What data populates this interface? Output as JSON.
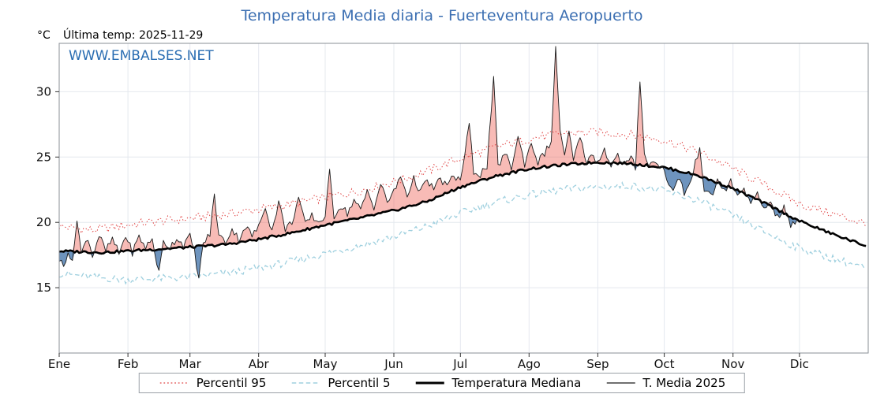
{
  "header": {
    "unit_label": "°C",
    "last_temp_label": "Última temp: 2025-11-29",
    "watermark": "WWW.EMBALSES.NET"
  },
  "chart_data": {
    "type": "line",
    "title": "Temperatura Media diaria - Fuerteventura Aeropuerto",
    "xlabel": "",
    "ylabel": "°C",
    "x_tick_labels": [
      "Ene",
      "Feb",
      "Mar",
      "Abr",
      "May",
      "Jun",
      "Jul",
      "Ago",
      "Sep",
      "Oct",
      "Nov",
      "Dic"
    ],
    "month_start_days": [
      0,
      31,
      59,
      90,
      120,
      151,
      181,
      212,
      243,
      273,
      304,
      334
    ],
    "days_in_year": 365,
    "yticks": [
      15,
      20,
      25,
      30
    ],
    "ylim": [
      10,
      33.7
    ],
    "grid": true,
    "legend_position": "bottom",
    "colors": {
      "title": "#3c6fb2",
      "watermark": "#2a6db2",
      "p95": "#e04343",
      "p5": "#9fd0df",
      "median": "#000000",
      "t2025": "#1a1a1a",
      "fill_above": "rgba(238,92,82,0.42)",
      "fill_below": "rgba(62,112,168,0.75)",
      "grid": "#e4e8ee",
      "frame": "#8a8f96",
      "tick_text": "#111111"
    },
    "legend": [
      {
        "label": "Percentil 95",
        "key": "p95"
      },
      {
        "label": "Percentil 5",
        "key": "p5"
      },
      {
        "label": "Temperatura Mediana",
        "key": "median"
      },
      {
        "label": "T. Media 2025",
        "key": "t2025"
      }
    ],
    "series": {
      "percentil95": {
        "name": "Percentil 95",
        "noise": 0.35,
        "points": [
          [
            0,
            19.7
          ],
          [
            15,
            19.4
          ],
          [
            31,
            19.8
          ],
          [
            45,
            20.1
          ],
          [
            59,
            20.3
          ],
          [
            75,
            20.6
          ],
          [
            90,
            21.0
          ],
          [
            105,
            21.4
          ],
          [
            120,
            21.9
          ],
          [
            135,
            22.4
          ],
          [
            151,
            23.1
          ],
          [
            166,
            23.9
          ],
          [
            181,
            24.9
          ],
          [
            196,
            25.7
          ],
          [
            212,
            26.4
          ],
          [
            227,
            26.8
          ],
          [
            243,
            26.9
          ],
          [
            258,
            26.7
          ],
          [
            273,
            26.3
          ],
          [
            288,
            25.4
          ],
          [
            304,
            24.1
          ],
          [
            319,
            22.8
          ],
          [
            334,
            21.4
          ],
          [
            350,
            20.6
          ],
          [
            364,
            19.9
          ]
        ]
      },
      "percentil5": {
        "name": "Percentil 5",
        "noise": 0.3,
        "points": [
          [
            0,
            16.1
          ],
          [
            15,
            15.8
          ],
          [
            31,
            15.6
          ],
          [
            45,
            15.7
          ],
          [
            59,
            15.8
          ],
          [
            75,
            16.1
          ],
          [
            90,
            16.5
          ],
          [
            105,
            17.0
          ],
          [
            120,
            17.6
          ],
          [
            135,
            18.2
          ],
          [
            151,
            18.9
          ],
          [
            166,
            19.7
          ],
          [
            181,
            20.7
          ],
          [
            196,
            21.5
          ],
          [
            212,
            22.1
          ],
          [
            227,
            22.5
          ],
          [
            243,
            22.7
          ],
          [
            258,
            22.8
          ],
          [
            273,
            22.4
          ],
          [
            288,
            21.7
          ],
          [
            304,
            20.5
          ],
          [
            319,
            19.2
          ],
          [
            334,
            18.0
          ],
          [
            350,
            17.2
          ],
          [
            364,
            16.5
          ]
        ]
      },
      "mediana": {
        "name": "Temperatura Mediana",
        "noise": 0.1,
        "points": [
          [
            0,
            17.8
          ],
          [
            20,
            17.7
          ],
          [
            40,
            17.9
          ],
          [
            59,
            18.1
          ],
          [
            75,
            18.3
          ],
          [
            90,
            18.7
          ],
          [
            105,
            19.2
          ],
          [
            120,
            19.8
          ],
          [
            135,
            20.3
          ],
          [
            151,
            20.9
          ],
          [
            166,
            21.6
          ],
          [
            181,
            22.7
          ],
          [
            196,
            23.5
          ],
          [
            212,
            24.1
          ],
          [
            227,
            24.4
          ],
          [
            243,
            24.6
          ],
          [
            258,
            24.5
          ],
          [
            273,
            24.2
          ],
          [
            288,
            23.6
          ],
          [
            304,
            22.6
          ],
          [
            319,
            21.4
          ],
          [
            334,
            20.1
          ],
          [
            349,
            19.1
          ],
          [
            364,
            18.2
          ]
        ]
      },
      "t_media_2025": {
        "name": "T. Media 2025",
        "noise": 0.3,
        "end_day": 333,
        "points": [
          [
            0,
            17.2
          ],
          [
            2,
            16.6
          ],
          [
            4,
            17.9
          ],
          [
            6,
            16.8
          ],
          [
            8,
            20.4
          ],
          [
            10,
            17.6
          ],
          [
            13,
            18.9
          ],
          [
            15,
            17.4
          ],
          [
            18,
            19.0
          ],
          [
            21,
            17.8
          ],
          [
            24,
            18.7
          ],
          [
            27,
            17.6
          ],
          [
            30,
            19.0
          ],
          [
            33,
            17.7
          ],
          [
            36,
            18.9
          ],
          [
            39,
            18.1
          ],
          [
            42,
            18.7
          ],
          [
            45,
            16.1
          ],
          [
            47,
            18.5
          ],
          [
            50,
            18.1
          ],
          [
            53,
            18.8
          ],
          [
            56,
            18.3
          ],
          [
            59,
            18.9
          ],
          [
            61,
            17.8
          ],
          [
            63,
            15.7
          ],
          [
            65,
            18.4
          ],
          [
            68,
            19.1
          ],
          [
            70,
            22.1
          ],
          [
            72,
            19.0
          ],
          [
            75,
            18.5
          ],
          [
            78,
            19.5
          ],
          [
            81,
            18.7
          ],
          [
            84,
            19.7
          ],
          [
            87,
            19.0
          ],
          [
            90,
            19.6
          ],
          [
            93,
            21.3
          ],
          [
            96,
            19.3
          ],
          [
            99,
            21.6
          ],
          [
            102,
            19.5
          ],
          [
            105,
            20.0
          ],
          [
            108,
            21.9
          ],
          [
            111,
            19.8
          ],
          [
            114,
            20.5
          ],
          [
            117,
            20.0
          ],
          [
            120,
            20.5
          ],
          [
            122,
            23.8
          ],
          [
            124,
            20.5
          ],
          [
            127,
            21.3
          ],
          [
            130,
            20.7
          ],
          [
            133,
            21.7
          ],
          [
            136,
            20.9
          ],
          [
            139,
            22.4
          ],
          [
            142,
            21.2
          ],
          [
            145,
            22.9
          ],
          [
            148,
            21.6
          ],
          [
            151,
            22.3
          ],
          [
            154,
            23.5
          ],
          [
            157,
            22.1
          ],
          [
            160,
            23.3
          ],
          [
            163,
            22.4
          ],
          [
            166,
            23.1
          ],
          [
            169,
            22.6
          ],
          [
            172,
            23.3
          ],
          [
            175,
            22.8
          ],
          [
            178,
            23.5
          ],
          [
            181,
            23.3
          ],
          [
            183,
            25.1
          ],
          [
            185,
            27.5
          ],
          [
            187,
            23.9
          ],
          [
            190,
            23.7
          ],
          [
            193,
            24.3
          ],
          [
            196,
            30.9
          ],
          [
            198,
            24.3
          ],
          [
            201,
            25.3
          ],
          [
            204,
            24.2
          ],
          [
            207,
            26.5
          ],
          [
            210,
            24.5
          ],
          [
            213,
            26.1
          ],
          [
            216,
            24.6
          ],
          [
            219,
            25.3
          ],
          [
            222,
            26.2
          ],
          [
            224,
            33.2
          ],
          [
            226,
            27.2
          ],
          [
            228,
            25.0
          ],
          [
            230,
            26.8
          ],
          [
            232,
            24.8
          ],
          [
            235,
            26.4
          ],
          [
            238,
            24.7
          ],
          [
            241,
            25.1
          ],
          [
            243,
            24.6
          ],
          [
            246,
            25.6
          ],
          [
            249,
            24.4
          ],
          [
            252,
            25.1
          ],
          [
            255,
            24.3
          ],
          [
            258,
            24.9
          ],
          [
            260,
            24.2
          ],
          [
            262,
            31.0
          ],
          [
            264,
            25.4
          ],
          [
            266,
            24.3
          ],
          [
            269,
            24.7
          ],
          [
            272,
            24.2
          ],
          [
            275,
            23.1
          ],
          [
            277,
            22.3
          ],
          [
            280,
            23.5
          ],
          [
            282,
            22.2
          ],
          [
            285,
            23.1
          ],
          [
            289,
            25.9
          ],
          [
            291,
            22.5
          ],
          [
            294,
            21.9
          ],
          [
            297,
            23.2
          ],
          [
            300,
            22.4
          ],
          [
            303,
            23.1
          ],
          [
            306,
            21.9
          ],
          [
            309,
            22.7
          ],
          [
            312,
            21.3
          ],
          [
            315,
            22.1
          ],
          [
            318,
            21.0
          ],
          [
            321,
            21.7
          ],
          [
            324,
            20.3
          ],
          [
            327,
            21.1
          ],
          [
            330,
            19.7
          ],
          [
            333,
            20.2
          ]
        ]
      }
    }
  }
}
